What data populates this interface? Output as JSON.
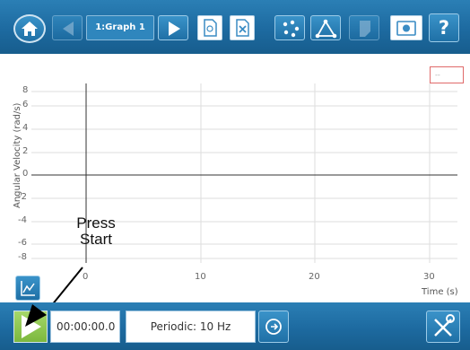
{
  "toolbar": {
    "graph_selector_label": "1:Graph 1",
    "help_label": "?"
  },
  "graph": {
    "y_axis_label": "Angular Velocity (rad/s)",
    "x_axis_label": "Time (s)",
    "y_ticks": [
      "8",
      "6",
      "4",
      "2",
      "0",
      "-2",
      "-4",
      "-6",
      "-8"
    ],
    "x_ticks": [
      "0",
      "10",
      "20",
      "30"
    ],
    "legend_text": "--"
  },
  "annotation": {
    "line1": "Press",
    "line2": "Start"
  },
  "bottombar": {
    "elapsed_time": "00:00:00.0",
    "sampling_mode": "Periodic: 10 Hz"
  },
  "colors": {
    "bar_blue": "#1d6aa0",
    "start_green": "#8bc34a",
    "grid": "#dddddd"
  }
}
